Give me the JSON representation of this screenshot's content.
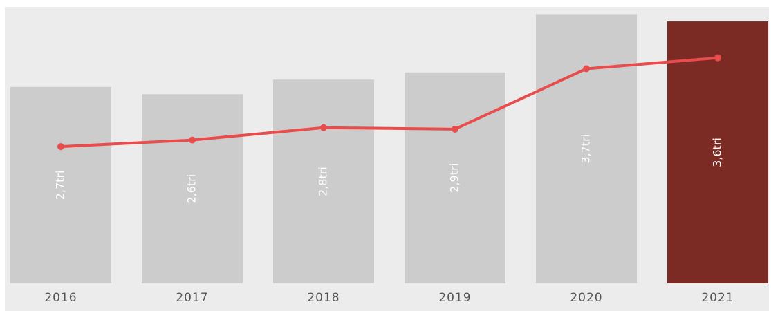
{
  "chart_data": {
    "type": "combo",
    "categories": [
      "2016",
      "2017",
      "2018",
      "2019",
      "2020",
      "2021"
    ],
    "ylim": [
      0,
      3.8
    ],
    "series": [
      {
        "type": "bar",
        "values": [
          2.7,
          2.6,
          2.8,
          2.9,
          3.7,
          3.6
        ],
        "value_labels": [
          "2,7tri",
          "2,6tri",
          "2,8tri",
          "2,9tri",
          "3,7tri",
          "3,6tri"
        ],
        "colors": [
          "#cccccc",
          "#cccccc",
          "#cccccc",
          "#cccccc",
          "#cccccc",
          "#7b2a24"
        ]
      },
      {
        "type": "line",
        "values": [
          1.88,
          1.97,
          2.14,
          2.12,
          2.95,
          3.1
        ],
        "color": "#e84c4c"
      }
    ]
  }
}
